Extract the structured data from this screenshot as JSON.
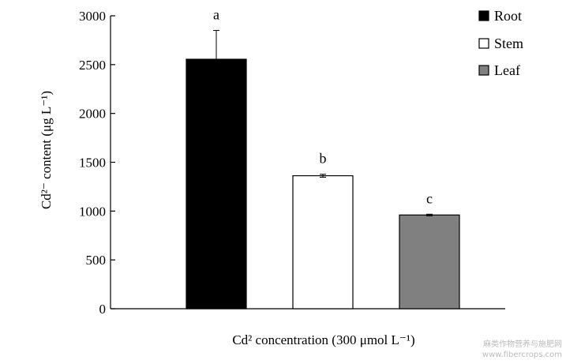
{
  "chart_data": {
    "type": "bar",
    "categories": [
      "Root",
      "Stem",
      "Leaf"
    ],
    "values": [
      2555,
      1362,
      960
    ],
    "errors": [
      295,
      15,
      8
    ],
    "significance_letters": [
      "a",
      "b",
      "c"
    ],
    "colors": [
      "#000000",
      "#ffffff",
      "#808080"
    ],
    "ylim": [
      0,
      3000
    ],
    "yticks": [
      "0",
      "500",
      "1000",
      "1500",
      "2000",
      "2500",
      "3000"
    ],
    "ylabel": "Cd²⁻ content (μg L⁻¹)",
    "xlabel": "Cd² concentration (300 μmol L⁻¹)",
    "legend": {
      "placement": "top-right",
      "entries": [
        "Root",
        "Stem",
        "Leaf"
      ]
    },
    "grid": false
  },
  "watermark": {
    "line1": "麻类作物营养与施肥网",
    "line2": "www.fibercrops.com"
  }
}
